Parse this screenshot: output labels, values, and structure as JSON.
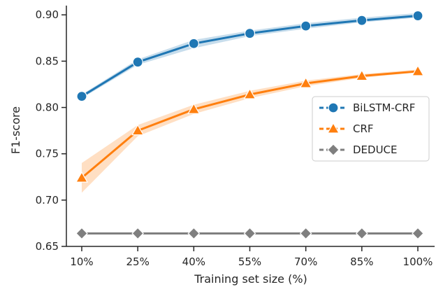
{
  "chart_data": {
    "type": "line",
    "title": "",
    "xlabel": "Training set size (%)",
    "ylabel": "F1-score",
    "categories": [
      "10%",
      "25%",
      "40%",
      "55%",
      "70%",
      "85%",
      "100%"
    ],
    "ylim": [
      0.65,
      0.91
    ],
    "yticks": [
      0.65,
      0.7,
      0.75,
      0.8,
      0.85,
      0.9
    ],
    "ytick_labels": [
      "0.65",
      "0.70",
      "0.75",
      "0.80",
      "0.85",
      "0.90"
    ],
    "grid": false,
    "legend_position": "center-right",
    "series": [
      {
        "name": "BiLSTM-CRF",
        "color": "#1f77b4",
        "marker": "circle",
        "values": [
          0.812,
          0.849,
          0.869,
          0.88,
          0.888,
          0.894,
          0.899
        ],
        "ci_low": [
          0.81,
          0.846,
          0.864,
          0.877,
          0.885,
          0.892,
          0.897
        ],
        "ci_high": [
          0.814,
          0.852,
          0.873,
          0.883,
          0.891,
          0.897,
          0.902
        ]
      },
      {
        "name": "CRF",
        "color": "#ff7f0e",
        "marker": "triangle",
        "values": [
          0.724,
          0.775,
          0.798,
          0.814,
          0.826,
          0.834,
          0.839
        ],
        "ci_low": [
          0.708,
          0.769,
          0.793,
          0.81,
          0.823,
          0.832,
          0.838
        ],
        "ci_high": [
          0.74,
          0.781,
          0.803,
          0.818,
          0.829,
          0.836,
          0.841
        ]
      },
      {
        "name": "DEDUCE",
        "color": "#7f7f7f",
        "marker": "diamond",
        "values": [
          0.664,
          0.664,
          0.664,
          0.664,
          0.664,
          0.664,
          0.664
        ]
      }
    ]
  }
}
